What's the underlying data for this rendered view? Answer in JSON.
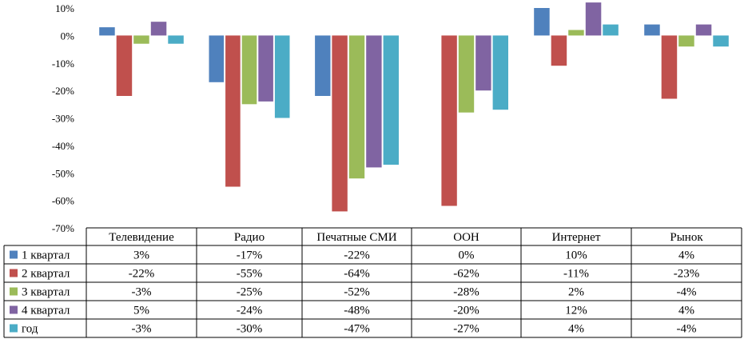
{
  "chart_data": {
    "type": "bar",
    "categories": [
      "Телевидение",
      "Радио",
      "Печатные СМИ",
      "ООН",
      "Интернет",
      "Рынок"
    ],
    "series": [
      {
        "name": "1 квартал",
        "color": "#4f81bd",
        "values": [
          3,
          -17,
          -22,
          0,
          10,
          4
        ],
        "labels": [
          "3%",
          "-17%",
          "-22%",
          "0%",
          "10%",
          "4%"
        ]
      },
      {
        "name": "2 квартал",
        "color": "#c0504d",
        "values": [
          -22,
          -55,
          -64,
          -62,
          -11,
          -23
        ],
        "labels": [
          "-22%",
          "-55%",
          "-64%",
          "-62%",
          "-11%",
          "-23%"
        ]
      },
      {
        "name": "3 квартал",
        "color": "#9bbb59",
        "values": [
          -3,
          -25,
          -52,
          -28,
          2,
          -4
        ],
        "labels": [
          "-3%",
          "-25%",
          "-52%",
          "-28%",
          "2%",
          "-4%"
        ]
      },
      {
        "name": "4 квартал",
        "color": "#8064a2",
        "values": [
          5,
          -24,
          -48,
          -20,
          12,
          4
        ],
        "labels": [
          "5%",
          "-24%",
          "-48%",
          "-20%",
          "12%",
          "4%"
        ]
      },
      {
        "name": "год",
        "color": "#4bacc6",
        "values": [
          -3,
          -30,
          -47,
          -27,
          4,
          -4
        ],
        "labels": [
          "-3%",
          "-30%",
          "-47%",
          "-27%",
          "4%",
          "-4%"
        ]
      }
    ],
    "yticks": [
      "10%",
      "0%",
      "-10%",
      "-20%",
      "-30%",
      "-40%",
      "-50%",
      "-60%",
      "-70%"
    ],
    "ylim": [
      -70,
      10
    ],
    "yunit": "%",
    "grid": false,
    "legend": "data-table"
  }
}
